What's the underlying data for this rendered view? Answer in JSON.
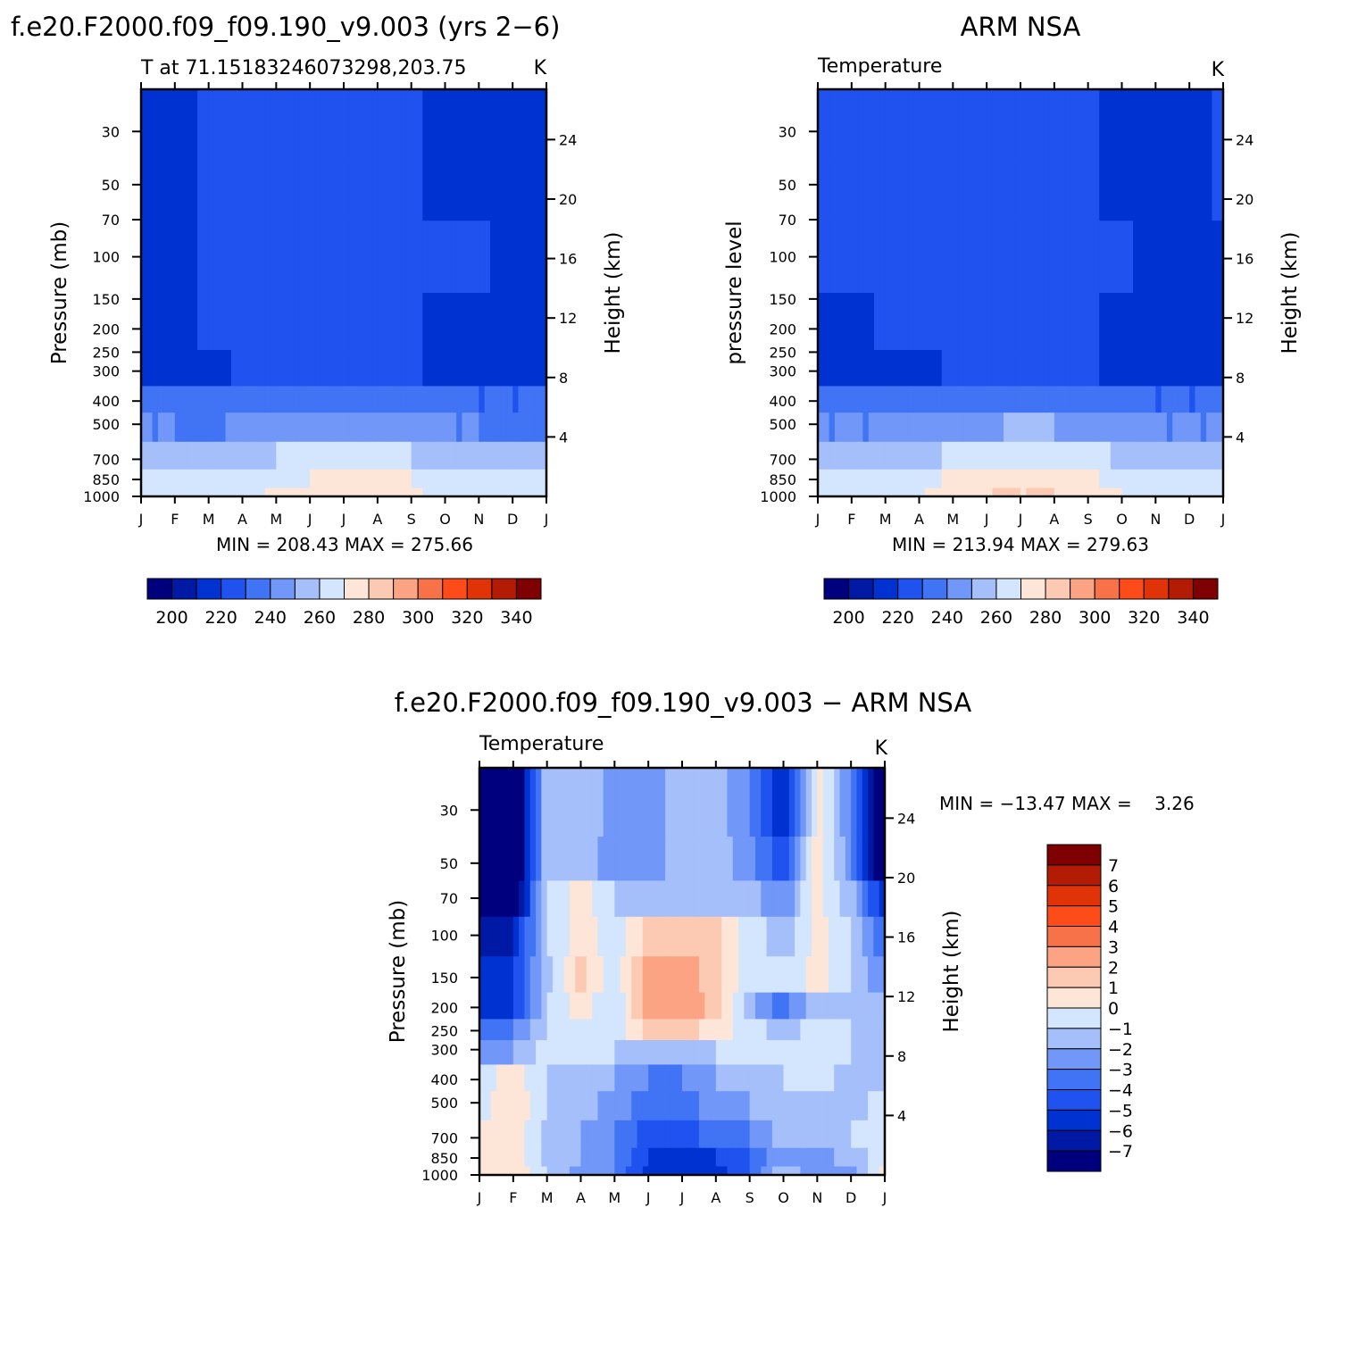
{
  "panels": [
    {
      "title": "f.e20.F2000.f09_f09.190_v9.003 (yrs 2−6)",
      "subtitle_left": "T at 71.15183246073298,203.75",
      "subtitle_right": "K",
      "ylabel_left": "Pressure (mb)",
      "ylabel_right": "Height (km)",
      "stats": "MIN = 208.43 MAX = 275.66",
      "colorbar_labels": [
        "200",
        "220",
        "240",
        "260",
        "280",
        "300",
        "320",
        "340"
      ]
    },
    {
      "title": "ARM NSA",
      "subtitle_left": "Temperature",
      "subtitle_right": "K",
      "ylabel_left": "pressure level",
      "ylabel_right": "Height (km)",
      "stats": "MIN = 213.94 MAX = 279.63",
      "colorbar_labels": [
        "200",
        "220",
        "240",
        "260",
        "280",
        "300",
        "320",
        "340"
      ]
    },
    {
      "title": "f.e20.F2000.f09_f09.190_v9.003 − ARM NSA",
      "subtitle_left": "Temperature",
      "subtitle_right": "K",
      "ylabel_left": "Pressure (mb)",
      "ylabel_right": "Height (km)",
      "stats": "MIN = −13.47 MAX =    3.26",
      "colorbar_labels": [
        "7",
        "6",
        "5",
        "4",
        "3",
        "2",
        "1",
        "0",
        "−1",
        "−2",
        "−3",
        "−4",
        "−5",
        "−6",
        "−7"
      ]
    }
  ],
  "colors": {
    "abs_scale": [
      "#00007f",
      "#0019a5",
      "#0032d2",
      "#1f52ef",
      "#4173f5",
      "#7197f9",
      "#a5bffb",
      "#d3e6fd",
      "#fde6d8",
      "#fccab2",
      "#fba383",
      "#f77249",
      "#fd4c19",
      "#e03308",
      "#b31b05",
      "#7f0000"
    ],
    "diff_scale": [
      "#7f0000",
      "#b31b05",
      "#e03308",
      "#fd4c19",
      "#f77249",
      "#fba383",
      "#fccab2",
      "#fde6d8",
      "#d3e6fd",
      "#a5bffb",
      "#7197f9",
      "#4173f5",
      "#1f52ef",
      "#0032d2",
      "#0019a5",
      "#00007f"
    ]
  },
  "chart_data": [
    {
      "type": "heatmap",
      "title": "f.e20.F2000.f09_f09.190_v9.003 (yrs 2−6)",
      "subtitle": "T at 71.15183246073298,203.75",
      "units": "K",
      "x": [
        "J",
        "F",
        "M",
        "A",
        "M",
        "J",
        "J",
        "A",
        "S",
        "O",
        "N",
        "D",
        "J"
      ],
      "y_pressure_ticks": [
        30,
        50,
        70,
        100,
        150,
        200,
        250,
        300,
        400,
        500,
        700,
        850,
        1000
      ],
      "y_height_ticks": [
        4,
        8,
        12,
        16,
        20,
        24
      ],
      "xlabel": "",
      "ylabel": "Pressure (mb)",
      "ylabel_right": "Height (km)",
      "y_scale": "log",
      "colorbar": {
        "levels": [
          200,
          220,
          240,
          260,
          280,
          300,
          320,
          340
        ],
        "placement": "bottom"
      },
      "min": 208.43,
      "max": 275.66,
      "values_by_level": {
        "30": [
          218,
          218,
          221,
          221,
          221,
          221,
          221,
          221,
          221,
          218,
          218,
          215,
          218
        ],
        "50": [
          218,
          218,
          221,
          221,
          221,
          221,
          221,
          221,
          221,
          218,
          218,
          218,
          218
        ],
        "100": [
          218,
          218,
          221,
          221,
          221,
          221,
          221,
          221,
          221,
          221,
          221,
          218,
          218
        ],
        "200": [
          218,
          218,
          221,
          221,
          221,
          221,
          221,
          221,
          221,
          218,
          218,
          218,
          218
        ],
        "300": [
          215,
          215,
          218,
          221,
          221,
          221,
          221,
          221,
          221,
          218,
          218,
          218,
          218
        ],
        "400": [
          232,
          232,
          230,
          232,
          234,
          236,
          236,
          234,
          232,
          232,
          230,
          230,
          230
        ],
        "500": [
          240,
          240,
          238,
          242,
          245,
          248,
          249,
          246,
          244,
          240,
          240,
          238,
          238
        ],
        "700": [
          254,
          252,
          250,
          256,
          260,
          263,
          264,
          263,
          260,
          258,
          254,
          254,
          254
        ],
        "850": [
          262,
          262,
          262,
          264,
          268,
          270,
          272,
          272,
          270,
          268,
          262,
          262,
          262
        ],
        "1000": [
          262,
          262,
          264,
          266,
          272,
          276,
          276,
          275,
          272,
          266,
          262,
          262,
          262
        ]
      }
    },
    {
      "type": "heatmap",
      "title": "ARM NSA",
      "subtitle": "Temperature",
      "units": "K",
      "x": [
        "J",
        "F",
        "M",
        "A",
        "M",
        "J",
        "J",
        "A",
        "S",
        "O",
        "N",
        "D",
        "J"
      ],
      "y_pressure_ticks": [
        30,
        50,
        70,
        100,
        150,
        200,
        250,
        300,
        400,
        500,
        700,
        850,
        1000
      ],
      "y_height_ticks": [
        4,
        8,
        12,
        16,
        20,
        24
      ],
      "xlabel": "",
      "ylabel": "pressure level",
      "ylabel_right": "Height (km)",
      "y_scale": "log",
      "colorbar": {
        "levels": [
          200,
          220,
          240,
          260,
          280,
          300,
          320,
          340
        ],
        "placement": "bottom"
      },
      "min": 213.94,
      "max": 279.63,
      "values_by_level": {
        "30": [
          221,
          221,
          221,
          221,
          221,
          221,
          222,
          221,
          221,
          218,
          218,
          218,
          221
        ],
        "50": [
          221,
          221,
          221,
          221,
          221,
          221,
          221,
          221,
          221,
          218,
          218,
          218,
          221
        ],
        "100": [
          221,
          221,
          221,
          221,
          221,
          221,
          221,
          221,
          221,
          221,
          218,
          218,
          218
        ],
        "200": [
          218,
          218,
          221,
          221,
          221,
          221,
          221,
          221,
          221,
          218,
          218,
          218,
          218
        ],
        "300": [
          215,
          215,
          215,
          218,
          221,
          221,
          221,
          221,
          221,
          218,
          218,
          218,
          218
        ],
        "400": [
          232,
          232,
          232,
          232,
          234,
          236,
          237,
          236,
          234,
          232,
          230,
          230,
          230
        ],
        "500": [
          240,
          240,
          240,
          242,
          245,
          249,
          251,
          250,
          246,
          242,
          240,
          240,
          240
        ],
        "700": [
          252,
          252,
          250,
          256,
          262,
          266,
          268,
          267,
          264,
          258,
          254,
          254,
          254
        ],
        "850": [
          262,
          262,
          262,
          266,
          272,
          276,
          276,
          276,
          272,
          266,
          264,
          262,
          262
        ],
        "1000": [
          262,
          262,
          264,
          268,
          276,
          280,
          280,
          280,
          276,
          270,
          264,
          262,
          262
        ]
      }
    },
    {
      "type": "heatmap",
      "title": "f.e20.F2000.f09_f09.190_v9.003 − ARM NSA",
      "subtitle": "Temperature",
      "units": "K",
      "x": [
        "J",
        "F",
        "M",
        "A",
        "M",
        "J",
        "J",
        "A",
        "S",
        "O",
        "N",
        "D",
        "J"
      ],
      "y_pressure_ticks": [
        30,
        50,
        70,
        100,
        150,
        200,
        250,
        300,
        400,
        500,
        700,
        850,
        1000
      ],
      "y_height_ticks": [
        4,
        8,
        12,
        16,
        20,
        24
      ],
      "xlabel": "",
      "ylabel": "Pressure (mb)",
      "ylabel_right": "Height (km)",
      "y_scale": "log",
      "colorbar": {
        "levels": [
          7,
          6,
          5,
          4,
          3,
          2,
          1,
          0,
          -1,
          -2,
          -3,
          -4,
          -5,
          -6,
          -7
        ],
        "placement": "right"
      },
      "min": -13.47,
      "max": 3.26,
      "values_by_level": {
        "30": [
          -9,
          -9,
          -1,
          -1,
          -2.5,
          -2.5,
          -1.5,
          -1.5,
          -3,
          -6,
          0.5,
          -3,
          -9
        ],
        "50": [
          -9,
          -9,
          -1,
          -1,
          -3,
          -2.5,
          -1.5,
          -1.5,
          -2.5,
          -5,
          0.5,
          -2.5,
          -9
        ],
        "70": [
          -8,
          -8,
          -1,
          0.5,
          -1,
          -1,
          -1,
          -1,
          -1.5,
          -3,
          0.5,
          -1.5,
          -6
        ],
        "100": [
          -6,
          -6,
          -1,
          0.5,
          -0.5,
          1.5,
          1.5,
          1.5,
          -0.5,
          -1.5,
          0.5,
          -1,
          -4
        ],
        "150": [
          -5,
          -5,
          -1.5,
          1.5,
          -0.5,
          2.5,
          2.5,
          1.5,
          -0.5,
          -1,
          0.5,
          -1,
          -3
        ],
        "200": [
          -5,
          -5,
          -1,
          0.5,
          -1,
          2.5,
          3,
          1.5,
          -1.5,
          -3.5,
          -1,
          -1,
          -2
        ],
        "250": [
          -3,
          -3,
          -1,
          -0.5,
          -0.5,
          1.5,
          1.5,
          0.5,
          -0.5,
          -1.5,
          -0.5,
          -1,
          -2
        ],
        "300": [
          -2,
          -2,
          -0.5,
          -0.5,
          -1,
          -1,
          -1,
          -1,
          -0.5,
          -0.5,
          -0.5,
          -1,
          -1.5
        ],
        "400": [
          -0.5,
          0.5,
          -1,
          -1.5,
          -2,
          -3,
          -3,
          -2,
          -1.5,
          -1,
          -0.5,
          -1.5,
          -1
        ],
        "500": [
          -0.5,
          1,
          -1,
          -1.5,
          -2.5,
          -3.5,
          -3.5,
          -2.5,
          -2,
          -1.5,
          -1,
          -1.5,
          -0.5
        ],
        "700": [
          0.5,
          1,
          -1.5,
          -2,
          -3,
          -4.5,
          -4.5,
          -3.5,
          -3,
          -1.5,
          -1.5,
          -1,
          -0.5
        ],
        "850": [
          1,
          1,
          -1.5,
          -2,
          -3,
          -5,
          -5,
          -5,
          -4,
          -2,
          -2.5,
          -1.5,
          -0.5
        ],
        "1000": [
          1,
          1,
          -1,
          -2.5,
          -3,
          -5.5,
          -6,
          -5.5,
          -4,
          -1,
          -3,
          -2.5,
          0.5
        ]
      }
    }
  ]
}
